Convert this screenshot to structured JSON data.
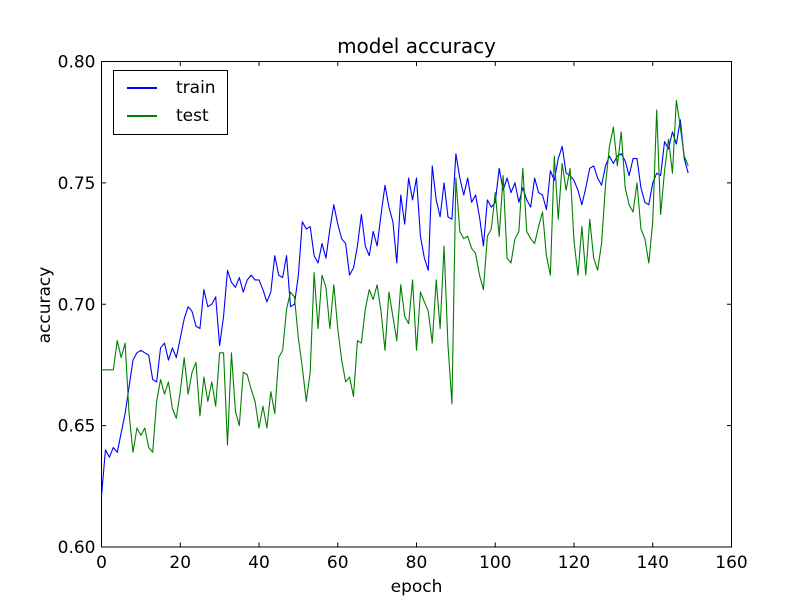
{
  "figure": {
    "background": "#ffffff",
    "frame_color": "#000000",
    "text_color": "#000000"
  },
  "chart_data": {
    "type": "line",
    "title": "model accuracy",
    "xlabel": "epoch",
    "ylabel": "accuracy",
    "xlim": [
      0,
      160
    ],
    "ylim": [
      0.6,
      0.8
    ],
    "grid": false,
    "x_ticks": [
      0,
      20,
      40,
      60,
      80,
      100,
      120,
      140,
      160
    ],
    "x_tick_labels": [
      "0",
      "20",
      "40",
      "60",
      "80",
      "100",
      "120",
      "140",
      "160"
    ],
    "y_ticks": [
      0.6,
      0.65,
      0.7,
      0.75,
      0.8
    ],
    "y_tick_labels": [
      "0.60",
      "0.65",
      "0.70",
      "0.75",
      "0.80"
    ],
    "legend": {
      "position": "upper left",
      "entries": [
        {
          "label": "train",
          "color": "#0000ff"
        },
        {
          "label": "test",
          "color": "#008000"
        }
      ]
    },
    "series": [
      {
        "name": "train",
        "color": "#0000ff",
        "x_start": 0,
        "x_step": 1,
        "values": [
          0.621,
          0.64,
          0.637,
          0.641,
          0.639,
          0.647,
          0.655,
          0.666,
          0.677,
          0.68,
          0.681,
          0.68,
          0.679,
          0.669,
          0.668,
          0.682,
          0.684,
          0.677,
          0.682,
          0.678,
          0.686,
          0.694,
          0.699,
          0.697,
          0.691,
          0.69,
          0.706,
          0.699,
          0.7,
          0.703,
          0.683,
          0.695,
          0.714,
          0.709,
          0.707,
          0.711,
          0.705,
          0.71,
          0.712,
          0.71,
          0.71,
          0.706,
          0.701,
          0.705,
          0.72,
          0.712,
          0.711,
          0.72,
          0.699,
          0.7,
          0.712,
          0.734,
          0.731,
          0.732,
          0.72,
          0.717,
          0.725,
          0.719,
          0.731,
          0.741,
          0.733,
          0.727,
          0.725,
          0.712,
          0.715,
          0.724,
          0.737,
          0.724,
          0.72,
          0.73,
          0.724,
          0.737,
          0.749,
          0.74,
          0.734,
          0.717,
          0.745,
          0.733,
          0.752,
          0.743,
          0.752,
          0.728,
          0.719,
          0.714,
          0.757,
          0.743,
          0.736,
          0.75,
          0.736,
          0.735,
          0.762,
          0.752,
          0.745,
          0.752,
          0.742,
          0.745,
          0.736,
          0.724,
          0.743,
          0.74,
          0.742,
          0.756,
          0.747,
          0.752,
          0.746,
          0.75,
          0.742,
          0.748,
          0.743,
          0.74,
          0.752,
          0.746,
          0.745,
          0.739,
          0.755,
          0.751,
          0.76,
          0.765,
          0.754,
          0.753,
          0.751,
          0.747,
          0.741,
          0.748,
          0.756,
          0.757,
          0.752,
          0.749,
          0.757,
          0.761,
          0.758,
          0.761,
          0.762,
          0.759,
          0.753,
          0.76,
          0.76,
          0.748,
          0.742,
          0.741,
          0.75,
          0.754,
          0.753,
          0.767,
          0.764,
          0.771,
          0.766,
          0.776,
          0.76,
          0.754
        ]
      },
      {
        "name": "test",
        "color": "#008000",
        "x_start": 0,
        "x_step": 1,
        "values": [
          0.673,
          0.673,
          0.673,
          0.673,
          0.685,
          0.678,
          0.684,
          0.655,
          0.639,
          0.649,
          0.646,
          0.649,
          0.641,
          0.639,
          0.66,
          0.669,
          0.663,
          0.668,
          0.657,
          0.653,
          0.664,
          0.678,
          0.663,
          0.672,
          0.676,
          0.654,
          0.67,
          0.66,
          0.668,
          0.658,
          0.68,
          0.68,
          0.642,
          0.68,
          0.656,
          0.65,
          0.672,
          0.671,
          0.665,
          0.66,
          0.649,
          0.658,
          0.649,
          0.664,
          0.655,
          0.678,
          0.681,
          0.698,
          0.705,
          0.703,
          0.686,
          0.674,
          0.66,
          0.672,
          0.713,
          0.69,
          0.712,
          0.707,
          0.69,
          0.708,
          0.69,
          0.677,
          0.668,
          0.67,
          0.662,
          0.685,
          0.684,
          0.698,
          0.706,
          0.702,
          0.708,
          0.697,
          0.681,
          0.705,
          0.695,
          0.685,
          0.708,
          0.695,
          0.692,
          0.71,
          0.681,
          0.705,
          0.701,
          0.697,
          0.684,
          0.71,
          0.69,
          0.724,
          0.683,
          0.659,
          0.752,
          0.73,
          0.727,
          0.728,
          0.723,
          0.721,
          0.712,
          0.706,
          0.728,
          0.731,
          0.746,
          0.728,
          0.753,
          0.719,
          0.717,
          0.727,
          0.73,
          0.756,
          0.73,
          0.727,
          0.725,
          0.732,
          0.738,
          0.72,
          0.712,
          0.761,
          0.735,
          0.758,
          0.747,
          0.756,
          0.726,
          0.712,
          0.732,
          0.712,
          0.735,
          0.719,
          0.714,
          0.725,
          0.749,
          0.765,
          0.773,
          0.757,
          0.771,
          0.748,
          0.741,
          0.738,
          0.75,
          0.731,
          0.727,
          0.717,
          0.734,
          0.78,
          0.737,
          0.755,
          0.768,
          0.754,
          0.784,
          0.773,
          0.761,
          0.757
        ]
      }
    ]
  }
}
